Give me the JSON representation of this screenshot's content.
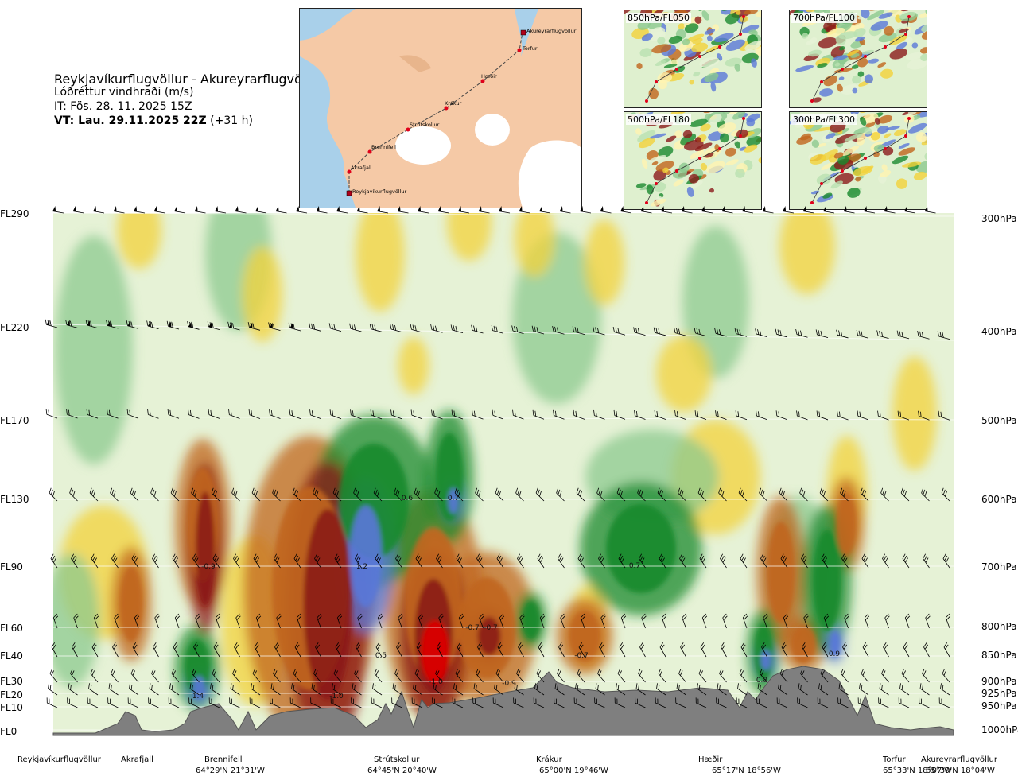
{
  "header": {
    "title": "Reykjavíkurflugvöllur - Akureyrarflugvöllur",
    "parameter": "Lóðréttur vindhraði (m/s)",
    "issue_time": "IT: Fös. 28. 11. 2025 15Z",
    "valid_label": "VT: Lau. 29.11.2025 22Z",
    "valid_offset": "(+31 h)"
  },
  "route_map": {
    "places": [
      "Akureyrarflugvöllur",
      "Torfur",
      "Hæðir",
      "Krákur",
      "Strútskollur",
      "Brennifell",
      "Akrafjall",
      "Reykjavíkurflugvöllur"
    ],
    "colors": {
      "sea": "#a9d0ea",
      "land": "#f5c9a6",
      "ice": "#ffffff",
      "route": "#444444",
      "point": "#e0001a"
    }
  },
  "insets": [
    {
      "label": "850hPa/FL050"
    },
    {
      "label": "700hPa/FL100"
    },
    {
      "label": "500hPa/FL180"
    },
    {
      "label": "300hPa/FL300"
    }
  ],
  "flight_levels": [
    "FL290",
    "FL220",
    "FL170",
    "FL130",
    "FL90",
    "FL60",
    "FL40",
    "FL30",
    "FL20",
    "FL10",
    "FL0"
  ],
  "pressure_levels": [
    "300hPa",
    "400hPa",
    "500hPa",
    "600hPa",
    "700hPa",
    "800hPa",
    "850hPa",
    "900hPa",
    "925hPa",
    "950hPa",
    "1000hPa"
  ],
  "cross_section": {
    "values": [
      {
        "text": "-0.9"
      },
      {
        "text": "1.2"
      },
      {
        "text": "0.6"
      },
      {
        "text": "0.7"
      },
      {
        "text": "0.7"
      },
      {
        "text": "-0.7"
      },
      {
        "text": "-0.7"
      },
      {
        "text": "-0.7"
      },
      {
        "text": "0.5"
      },
      {
        "text": "-1.0"
      },
      {
        "text": "-0.9"
      },
      {
        "text": "1.4"
      },
      {
        "text": "-1.0"
      },
      {
        "text": "0.8"
      },
      {
        "text": "0.9"
      }
    ],
    "colors": {
      "strong_down": "#8b1a1a",
      "down": "#c0651c",
      "weak_down": "#f3d23a",
      "neutral": "#e6f2d6",
      "weak_up": "#8cc98f",
      "up": "#1a8a2e",
      "strong_up": "#5a78d8",
      "terrain": "#7a7a7a"
    }
  },
  "locations": [
    {
      "name": "Reykjavíkurflugvöllur",
      "coord": ""
    },
    {
      "name": "Akrafjall",
      "coord": ""
    },
    {
      "name": "Brennifell",
      "coord": "64°29'N 21°31'W"
    },
    {
      "name": "Strútskollur",
      "coord": "64°45'N 20°40'W"
    },
    {
      "name": "Krákur",
      "coord": "65°00'N 19°46'W"
    },
    {
      "name": "Hæðir",
      "coord": "65°17'N 18°56'W"
    },
    {
      "name": "Torfur",
      "coord": "65°33'N 18°07'W"
    },
    {
      "name": "Akureyrarflugvöllur",
      "coord": "65°39'N 18°04'W"
    }
  ]
}
